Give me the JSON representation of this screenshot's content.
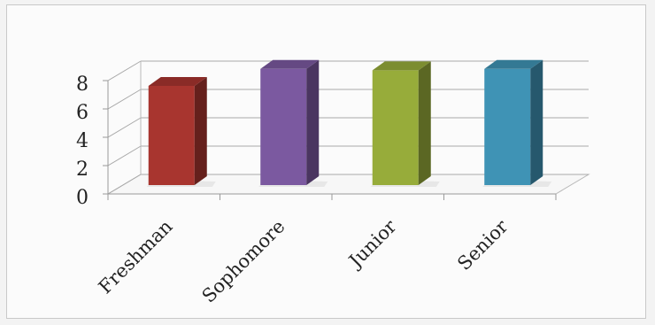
{
  "chart_data": {
    "type": "bar",
    "style": "3d-column",
    "categories": [
      "Freshman",
      "Sophomore",
      "Junior",
      "Senior"
    ],
    "values": [
      7,
      8.2,
      8.1,
      8.2
    ],
    "ylim": [
      0,
      8
    ],
    "yticks": [
      0,
      2,
      4,
      6,
      8
    ],
    "ytick_labels": [
      "0",
      "2",
      "4",
      "6",
      "8"
    ],
    "grid": true,
    "legend": "none",
    "colors": [
      "#a8352f",
      "#7b59a0",
      "#97ac3a",
      "#3f93b5"
    ]
  }
}
